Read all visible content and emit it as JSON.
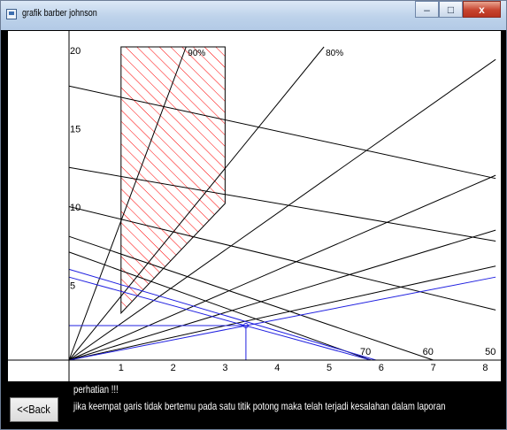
{
  "window": {
    "title": "grafik barber johnson",
    "minimize_glyph": "–",
    "maximize_glyph": "□",
    "close_glyph": "x",
    "icon": "app-window-icon"
  },
  "chart_data": {
    "type": "line",
    "title": "",
    "xlabel": "",
    "ylabel": "",
    "xlim": [
      0,
      8
    ],
    "ylim": [
      0,
      20
    ],
    "x_ticks": [
      "1",
      "2",
      "3",
      "4",
      "5",
      "6",
      "7",
      "8"
    ],
    "y_ticks": [
      "5",
      "10",
      "15",
      "20"
    ],
    "grid": false,
    "colors": {
      "background": "#ffffff",
      "axis": "#000000",
      "reference": "#000000",
      "data": "#2020e0",
      "hatch": "#ff0000"
    },
    "ideal_region": {
      "x": [
        1,
        3
      ],
      "y_bottom_left": 3,
      "y_bottom_right": 10,
      "y_top": 20
    },
    "percent_rays": [
      {
        "label": "90%",
        "end": [
          2.25,
          20
        ]
      },
      {
        "label": "80%",
        "end": [
          4.9,
          20
        ]
      },
      {
        "label": null,
        "end": [
          8.2,
          19.2
        ]
      },
      {
        "label": null,
        "end": [
          8.2,
          11.8
        ]
      },
      {
        "label": null,
        "end": [
          8.2,
          8.3
        ]
      },
      {
        "label": null,
        "end": [
          8.2,
          6.0
        ]
      }
    ],
    "reference_lines": [
      {
        "label": "70",
        "from": [
          0,
          6.9
        ],
        "to": [
          5.8,
          0
        ]
      },
      {
        "label": "60",
        "from": [
          0,
          7.9
        ],
        "to": [
          7.0,
          0
        ]
      },
      {
        "label": "50",
        "from": [
          0,
          9.8
        ],
        "to": [
          8.2,
          3.2
        ]
      },
      {
        "label": null,
        "from": [
          0,
          12.3
        ],
        "to": [
          8.2,
          7.6
        ]
      },
      {
        "label": null,
        "from": [
          0,
          17.5
        ],
        "to": [
          8.2,
          11.6
        ]
      }
    ],
    "series": [
      {
        "from": [
          0,
          5.8
        ],
        "to": [
          5.9,
          0
        ]
      },
      {
        "from": [
          0,
          5.3
        ],
        "to": [
          5.8,
          0
        ]
      },
      {
        "from": [
          0,
          0
        ],
        "to": [
          8.2,
          5.3
        ]
      },
      {
        "from": [
          0,
          2.2
        ],
        "to": [
          3.4,
          2.2
        ]
      },
      {
        "from": [
          3.4,
          0
        ],
        "to": [
          3.4,
          2.2
        ]
      }
    ],
    "intersection_point": [
      3.4,
      2.2
    ]
  },
  "warning": {
    "title": "perhatian !!!",
    "message": "jika keempat garis tidak bertemu pada satu titik potong maka telah terjadi kesalahan dalam laporan"
  },
  "back_button": {
    "label": "<<Back"
  }
}
